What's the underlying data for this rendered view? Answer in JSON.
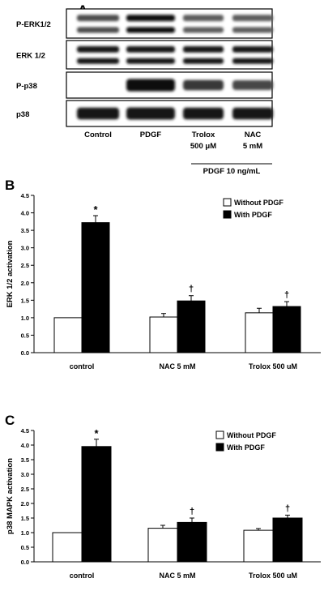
{
  "panel_a": {
    "letter": "A",
    "rows": [
      {
        "label": "P-ERK1/2",
        "double_band": true,
        "intensity": [
          0.55,
          1.0,
          0.45,
          0.45
        ]
      },
      {
        "label": "ERK 1/2",
        "double_band": true,
        "intensity": [
          0.9,
          0.95,
          0.9,
          0.9
        ]
      },
      {
        "label": "P-p38",
        "double_band": false,
        "intensity": [
          0.0,
          1.0,
          0.7,
          0.6
        ]
      },
      {
        "label": "p38",
        "double_band": false,
        "intensity": [
          0.9,
          0.95,
          0.9,
          0.9
        ]
      }
    ],
    "lanes": [
      {
        "line1": "Control",
        "line2": ""
      },
      {
        "line1": "PDGF",
        "line2": ""
      },
      {
        "line1": "Trolox",
        "line2": "500 μM"
      },
      {
        "line1": "NAC",
        "line2": "5 mM"
      }
    ],
    "treatment": "PDGF 10 ng/mL"
  },
  "chart_data": [
    {
      "type": "bar",
      "panel": "B",
      "categories": [
        "control",
        "NAC 5 mM",
        "Trolox 500 uM"
      ],
      "series": [
        {
          "name": "Without PDGF",
          "color": "#ffffff",
          "values": [
            1.0,
            1.02,
            1.14
          ],
          "errors": [
            0.0,
            0.1,
            0.13
          ]
        },
        {
          "name": "With PDGF",
          "color": "#000000",
          "values": [
            3.72,
            1.48,
            1.32
          ],
          "errors": [
            0.2,
            0.15,
            0.14
          ]
        }
      ],
      "annotations": [
        "*",
        "†",
        "†"
      ],
      "annotation_series_index": [
        1,
        1,
        1
      ],
      "ylabel": "ERK 1/2 activation",
      "ylim": [
        0.0,
        4.5
      ],
      "yticks": [
        "0.0",
        "0.5",
        "1.0",
        "1.5",
        "2.0",
        "2.5",
        "3.0",
        "3.5",
        "4.0",
        "4.5"
      ],
      "legend": "top-right"
    },
    {
      "type": "bar",
      "panel": "C",
      "categories": [
        "control",
        "NAC 5 mM",
        "Trolox 500 uM"
      ],
      "series": [
        {
          "name": "Without PDGF",
          "color": "#ffffff",
          "values": [
            1.0,
            1.15,
            1.08
          ],
          "errors": [
            0.0,
            0.1,
            0.06
          ]
        },
        {
          "name": "With PDGF",
          "color": "#000000",
          "values": [
            3.95,
            1.35,
            1.5
          ],
          "errors": [
            0.25,
            0.15,
            0.1
          ]
        }
      ],
      "annotations": [
        "*",
        "†",
        "†"
      ],
      "annotation_series_index": [
        1,
        1,
        1
      ],
      "ylabel": "p38 MAPK activation",
      "ylim": [
        0.0,
        4.5
      ],
      "yticks": [
        "0.0",
        "0.5",
        "1.0",
        "1.5",
        "2.0",
        "2.5",
        "3.0",
        "3.5",
        "4.0",
        "4.5"
      ],
      "legend": "top-right"
    }
  ],
  "panel_b": {
    "letter": "B"
  },
  "panel_c": {
    "letter": "C"
  }
}
